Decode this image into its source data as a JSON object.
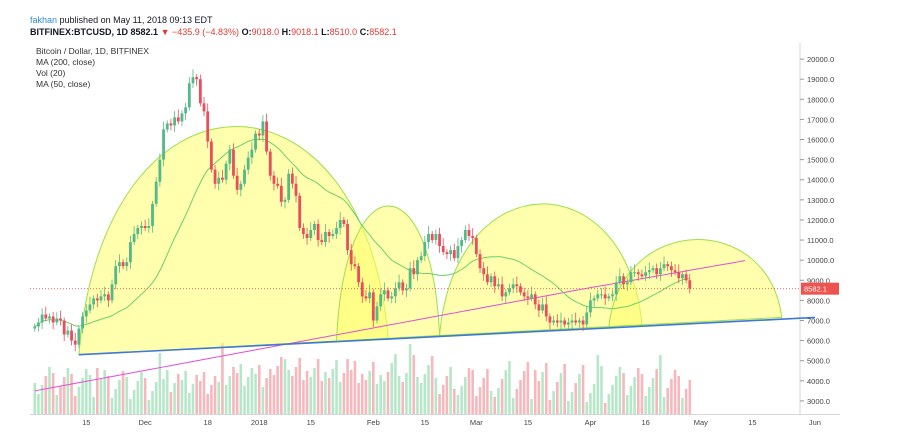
{
  "header": {
    "author": "fakhan",
    "published": "published on May 11, 2018 09:13 EDT",
    "symbol": "BITFINEX:BTCUSD, 1D",
    "last": "8582.1",
    "change": "▼ −435.9 (−4.83%)",
    "o_label": "O:",
    "o_value": "9018.0",
    "h_label": "H:",
    "h_value": "9018.1",
    "l_label": "L:",
    "l_value": "8510.0",
    "c_label": "C:",
    "c_value": "8582.1"
  },
  "legend": {
    "title": "Bitcoin / Dollar, 1D, BITFINEX",
    "ma200": "MA (200, close)",
    "vol": "Vol (20)",
    "ma50": "MA (50, close)"
  },
  "colors": {
    "up": "#53b987",
    "down": "#eb4d5c",
    "arc_fill": "#ffff6a",
    "arc_stroke": "#9be04b",
    "trendline": "#3f78d6",
    "ma200": "#e44dd4",
    "ma50": "#6bd16b",
    "price_line": "#ef5350",
    "vol_up": "#b7e7c9",
    "vol_down": "#f6b7bd"
  },
  "chart_data": {
    "type": "candlestick",
    "title": "Bitcoin / Dollar, 1D, BITFINEX",
    "x_tick_labels": [
      "15",
      "Dec",
      "18",
      "2018",
      "15",
      "Feb",
      "15",
      "Mar",
      "15",
      "Apr",
      "16",
      "May",
      "15",
      "Jun"
    ],
    "y_tick_labels": [
      "3000.0",
      "4000.0",
      "5000.0",
      "6000.0",
      "7000.0",
      "8000.0",
      "9000.0",
      "10000.0",
      "11000.0",
      "12000.0",
      "13000.0",
      "14000.0",
      "15000.0",
      "16000.0",
      "17000.0",
      "18000.0",
      "19000.0",
      "20000.0"
    ],
    "ylim": [
      2300,
      20800
    ],
    "current_price_label": "8582.1",
    "current_price": 8582.1,
    "dates": [
      "Nov 1",
      "May 11"
    ],
    "close": [
      6700,
      6900,
      7300,
      7100,
      7200,
      6900,
      7100,
      7000,
      6300,
      6500,
      6000,
      5800,
      6600,
      7200,
      7500,
      7800,
      8100,
      8000,
      8200,
      8300,
      8000,
      8800,
      9700,
      9900,
      9700,
      9900,
      10900,
      11300,
      11600,
      11700,
      11600,
      11700,
      12800,
      13900,
      15000,
      16500,
      16800,
      16700,
      17100,
      16900,
      17300,
      17600,
      18800,
      19100,
      19000,
      17800,
      17400,
      15900,
      14500,
      13800,
      14100,
      14000,
      14800,
      15500,
      14200,
      13500,
      13800,
      14500,
      15100,
      15500,
      16300,
      16200,
      16900,
      15400,
      14200,
      13800,
      13700,
      12900,
      13000,
      14300,
      13800,
      13200,
      11600,
      11300,
      11100,
      11500,
      11800,
      11000,
      10900,
      11400,
      11200,
      11300,
      11600,
      12000,
      11800,
      10500,
      9800,
      9700,
      8900,
      8200,
      8100,
      8400,
      7000,
      7700,
      8300,
      8500,
      8100,
      8200,
      8600,
      8900,
      8500,
      8600,
      9600,
      9300,
      10000,
      10200,
      10900,
      11300,
      11000,
      11300,
      10700,
      10400,
      10300,
      10500,
      10100,
      10700,
      11000,
      11500,
      11200,
      11100,
      10300,
      9600,
      9300,
      8900,
      9200,
      8700,
      8800,
      8200,
      8400,
      8600,
      8800,
      8700,
      8400,
      8200,
      8100,
      8300,
      7800,
      7500,
      7800,
      7200,
      6900,
      7000,
      6900,
      7000,
      6800,
      6900,
      7000,
      6900,
      7000,
      6800,
      7400,
      8000,
      8100,
      8300,
      8300,
      8100,
      8200,
      8300,
      8900,
      9200,
      8800,
      8900,
      9400,
      9400,
      9300,
      9200,
      9400,
      9500,
      9600,
      9300,
      9600,
      9800,
      9700,
      9500,
      9400,
      9100,
      9300,
      9000,
      8582
    ],
    "annotations": {
      "trendline": {
        "from": [
          "Nov 13",
          5300
        ],
        "to": [
          "Jun 1",
          7150
        ]
      },
      "arcs": [
        {
          "from": "Nov 13",
          "to": "Feb 5",
          "peak": 18300
        },
        {
          "from": "Jan 21",
          "to": "Feb 20",
          "peak": 12900
        },
        {
          "from": "Feb 19",
          "to": "Apr 15",
          "peak": 12900
        },
        {
          "from": "Apr 6",
          "to": "May 23",
          "peak": 10400
        }
      ]
    }
  }
}
